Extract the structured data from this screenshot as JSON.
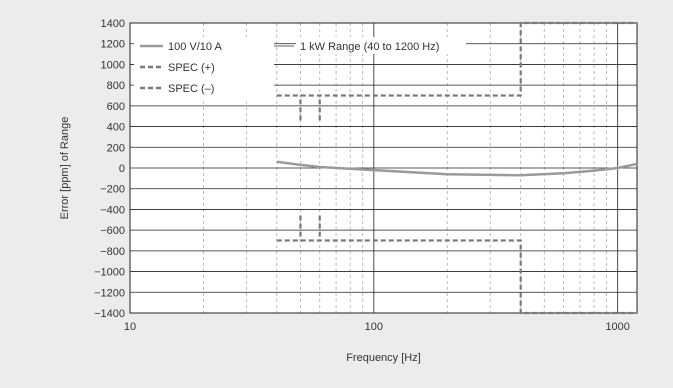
{
  "chart_data": {
    "type": "line",
    "xlabel": "Frequency [Hz]",
    "ylabel": "Error [ppm] of Range",
    "x_scale": "log",
    "xlim": [
      10,
      1200
    ],
    "ylim": [
      -1400,
      1400
    ],
    "x_ticks": [
      10,
      100,
      1000
    ],
    "y_ticks": [
      -1400,
      -1200,
      -1000,
      -800,
      -600,
      -400,
      -200,
      0,
      200,
      400,
      600,
      800,
      1000,
      1200,
      1400
    ],
    "y_tick_labels": [
      "−1400",
      "−1200",
      "−1000",
      "−800",
      "−600",
      "−400",
      "−200",
      "0",
      "200",
      "400",
      "600",
      "800",
      "1000",
      "1200",
      "1400"
    ],
    "grid": true,
    "legend_position": "top-left",
    "annotation": "1 kW Range (40 to 1200 Hz)",
    "series": [
      {
        "name": "100 V/10 A",
        "style": "solid",
        "color": "#9a9a9a",
        "points": [
          [
            40,
            60
          ],
          [
            50,
            30
          ],
          [
            60,
            10
          ],
          [
            100,
            -20
          ],
          [
            200,
            -60
          ],
          [
            400,
            -70
          ],
          [
            600,
            -50
          ],
          [
            800,
            -25
          ],
          [
            1000,
            0
          ],
          [
            1200,
            40
          ]
        ]
      },
      {
        "name": "SPEC (+)",
        "style": "dashed",
        "color": "#7a7a7a",
        "points": [
          [
            40,
            700
          ],
          [
            400,
            700
          ],
          [
            400,
            1400
          ],
          [
            1200,
            1400
          ]
        ],
        "spikes": [
          [
            50,
            460,
            700
          ],
          [
            60,
            460,
            700
          ]
        ]
      },
      {
        "name": "SPEC (–)",
        "style": "dashed",
        "color": "#7a7a7a",
        "points": [
          [
            40,
            -700
          ],
          [
            400,
            -700
          ],
          [
            400,
            -1400
          ],
          [
            1200,
            -1400
          ]
        ],
        "spikes": [
          [
            50,
            -460,
            -700
          ],
          [
            60,
            -460,
            -700
          ]
        ]
      }
    ]
  }
}
